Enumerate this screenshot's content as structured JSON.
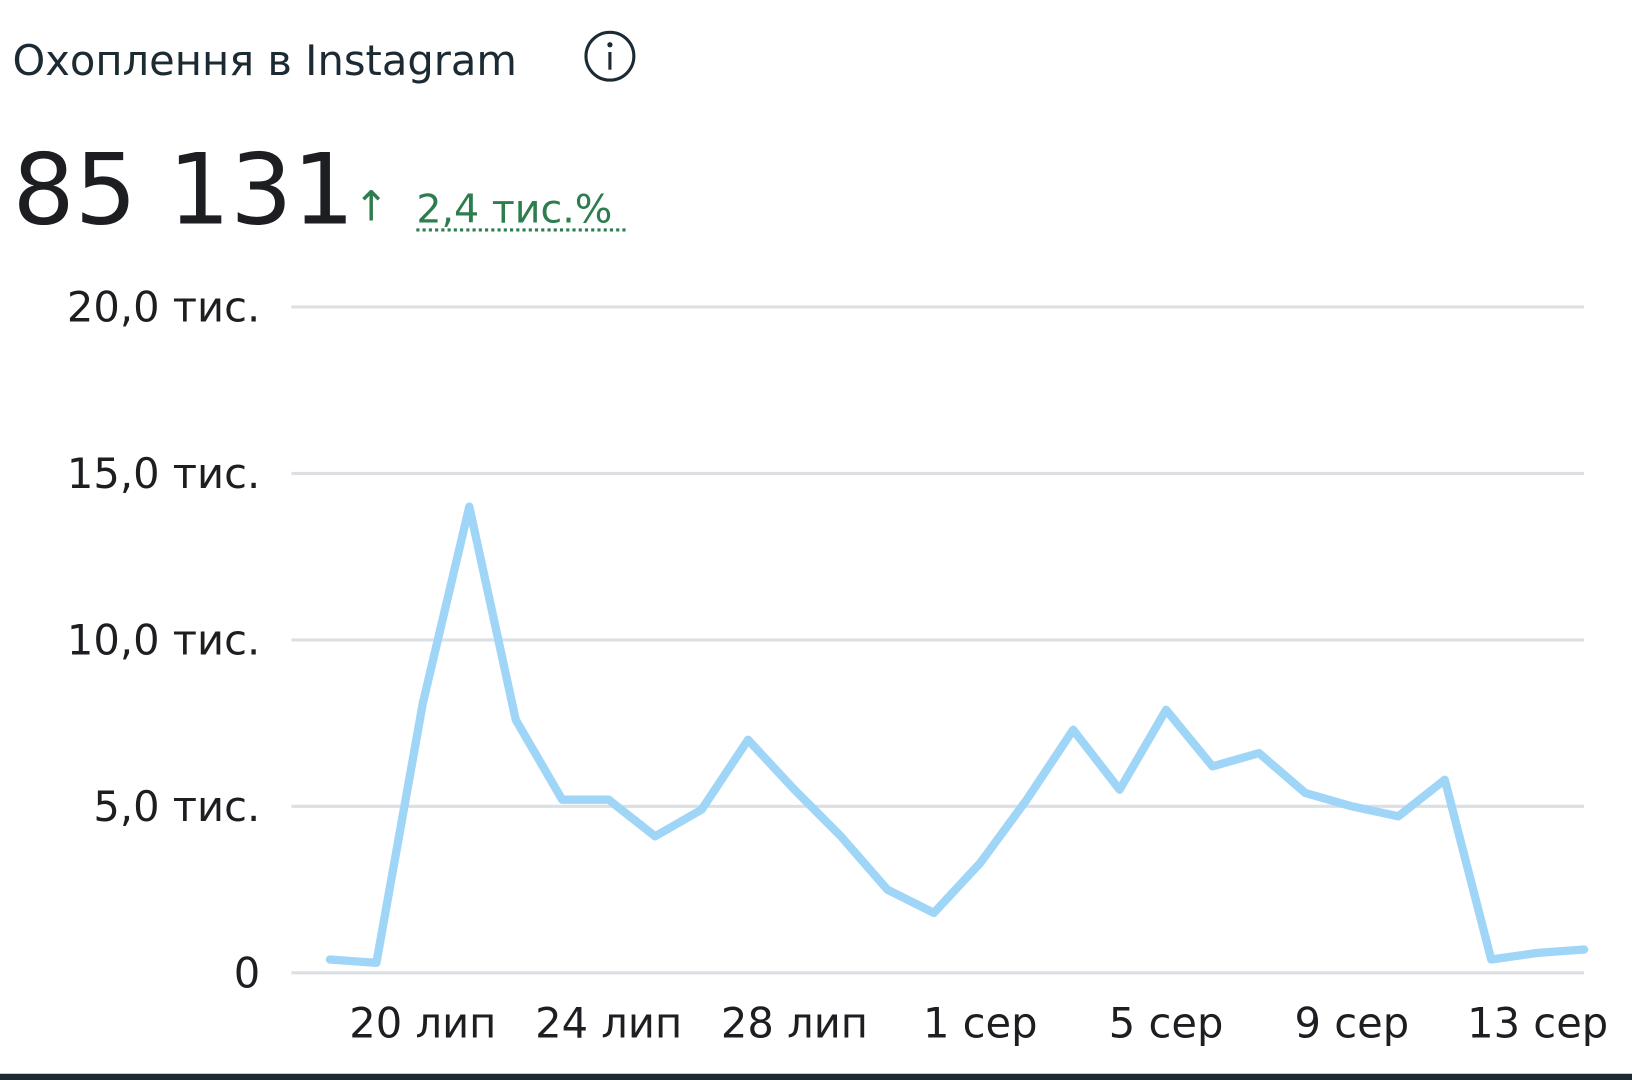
{
  "header": {
    "title": "Охоплення в Instagram",
    "total": "85 131",
    "change_arrow": "↑",
    "change": "2,4 тис.%"
  },
  "chart_data": {
    "type": "line",
    "categories": [
      null,
      null,
      "20 лип",
      null,
      null,
      null,
      "24 лип",
      null,
      null,
      null,
      "28 лип",
      null,
      null,
      null,
      "1 сер",
      null,
      null,
      null,
      "5 сер",
      null,
      null,
      null,
      "9 сер",
      null,
      null,
      null,
      "13 сер",
      null
    ],
    "series": [
      {
        "name": "Охоплення",
        "color": "#9fd6f7",
        "values": [
          400,
          300,
          8100,
          14000,
          7600,
          5200,
          5200,
          4100,
          4900,
          7000,
          5500,
          4100,
          2500,
          1800,
          3300,
          5200,
          7300,
          5500,
          7900,
          6200,
          6600,
          5400,
          5000,
          4700,
          5800,
          400,
          600,
          700
        ]
      }
    ],
    "ylim": [
      0,
      20000
    ],
    "yticks": [
      0,
      {
        "value": 5000,
        "label": "5,0 тис."
      },
      {
        "value": 10000,
        "label": "10,0 тис."
      },
      {
        "value": 15000,
        "label": "15,0 тис."
      },
      {
        "value": 20000,
        "label": "20,0 тис."
      }
    ],
    "grid": true
  }
}
